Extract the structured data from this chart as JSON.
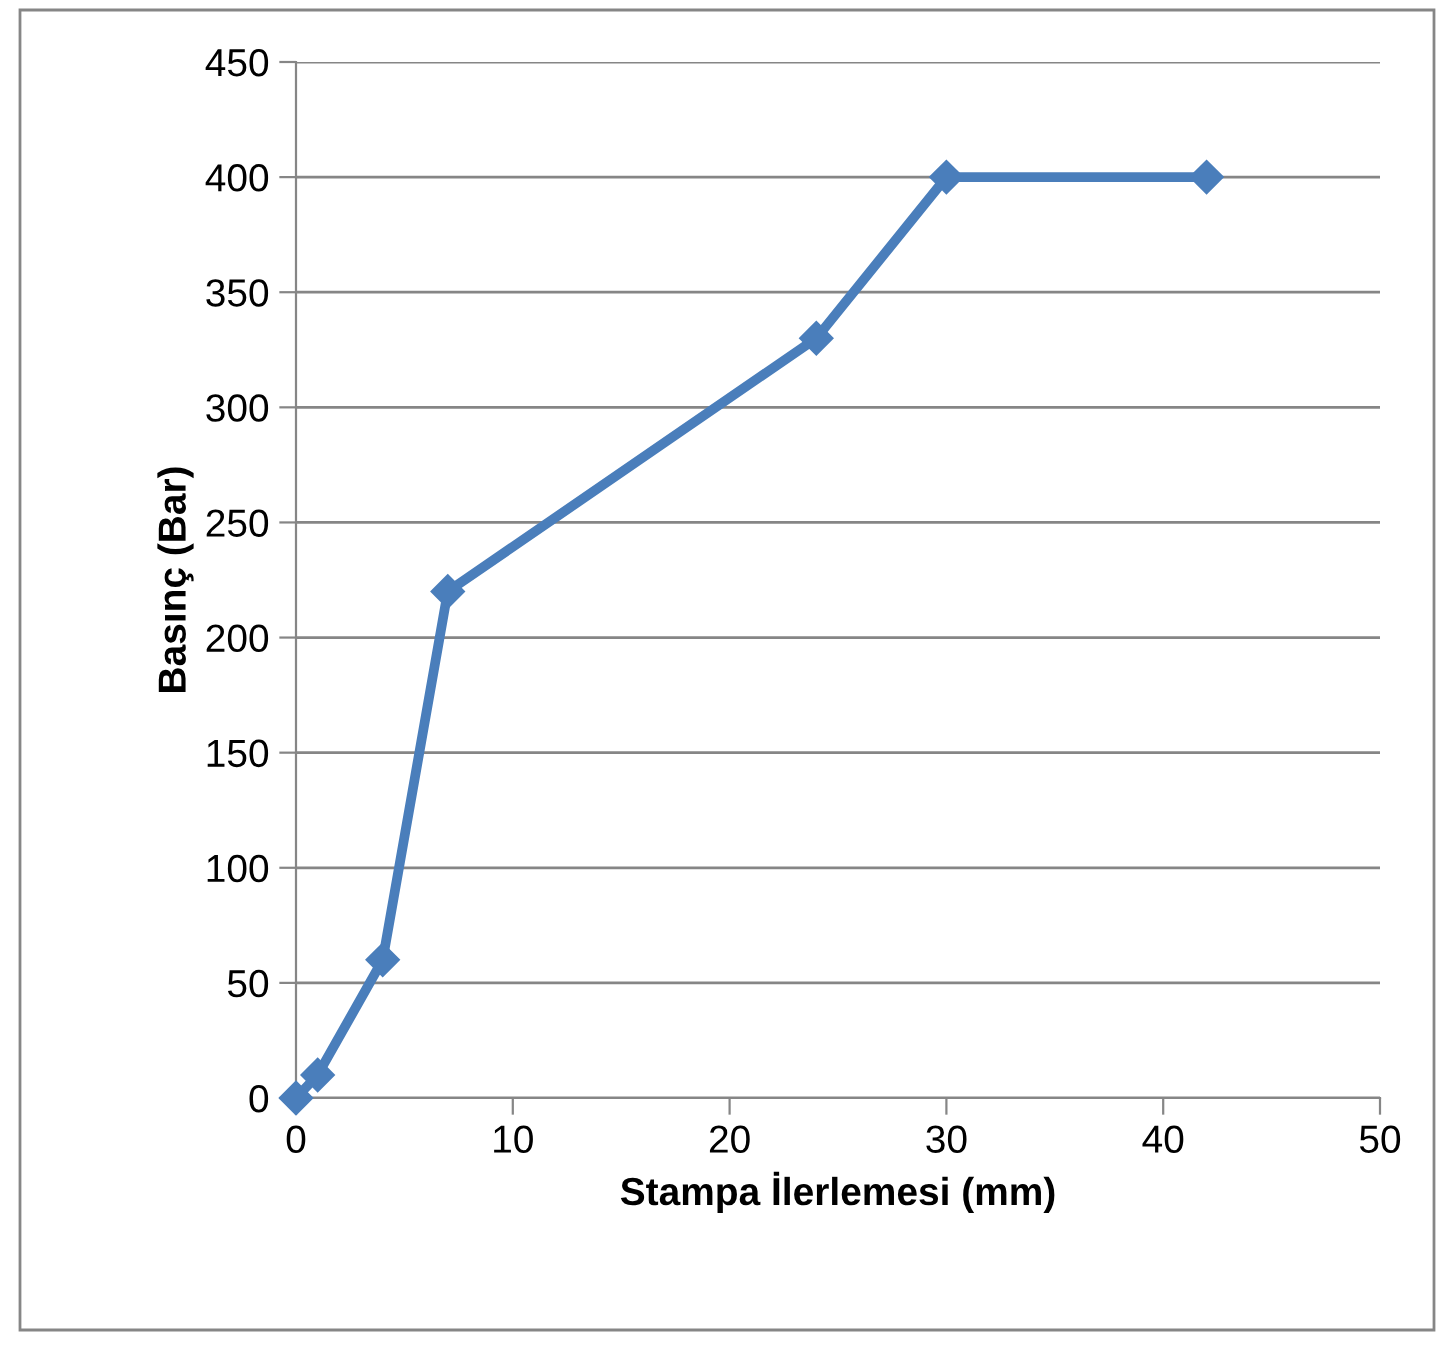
{
  "chart_data": {
    "type": "line",
    "xlabel": "Stampa İlerlemesi (mm)",
    "ylabel": "Basınç (Bar)",
    "x": [
      0,
      1,
      4,
      7,
      24,
      30,
      42
    ],
    "series": [
      {
        "color": "#4a7ebb",
        "values": [
          0,
          10,
          60,
          220,
          330,
          400,
          400
        ]
      }
    ],
    "xlim": [
      0,
      50
    ],
    "xticks": [
      0,
      10,
      20,
      30,
      40,
      50
    ],
    "ylim": [
      0,
      450
    ],
    "yticks": [
      0,
      50,
      100,
      150,
      200,
      250,
      300,
      350,
      400,
      450
    ],
    "grid": "y",
    "legend": false,
    "marker": "diamond",
    "line_style": "solid"
  }
}
